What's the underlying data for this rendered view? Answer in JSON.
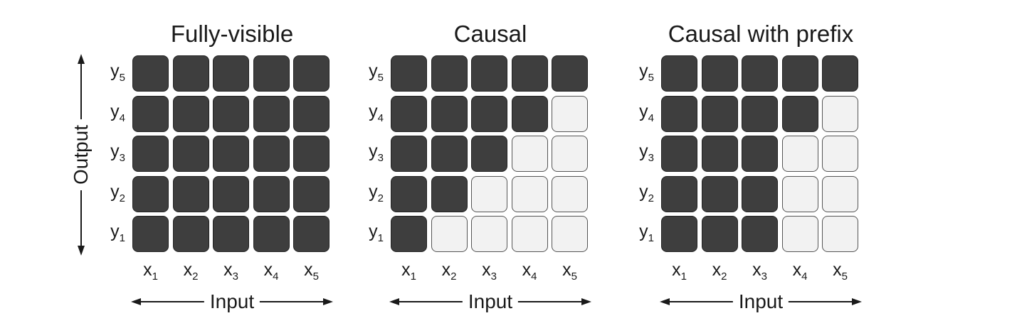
{
  "diagram": {
    "output_axis_label": "Output",
    "input_axis_label": "Input",
    "row_labels": [
      {
        "letter": "y",
        "sub": "5"
      },
      {
        "letter": "y",
        "sub": "4"
      },
      {
        "letter": "y",
        "sub": "3"
      },
      {
        "letter": "y",
        "sub": "2"
      },
      {
        "letter": "y",
        "sub": "1"
      }
    ],
    "col_labels": [
      {
        "letter": "x",
        "sub": "1"
      },
      {
        "letter": "x",
        "sub": "2"
      },
      {
        "letter": "x",
        "sub": "3"
      },
      {
        "letter": "x",
        "sub": "4"
      },
      {
        "letter": "x",
        "sub": "5"
      }
    ],
    "colors": {
      "attended": "#3e3e3e",
      "masked": "#f2f2f2",
      "border": "#222222"
    },
    "panels": [
      {
        "title": "Fully-visible",
        "mask": [
          [
            1,
            1,
            1,
            1,
            1
          ],
          [
            1,
            1,
            1,
            1,
            1
          ],
          [
            1,
            1,
            1,
            1,
            1
          ],
          [
            1,
            1,
            1,
            1,
            1
          ],
          [
            1,
            1,
            1,
            1,
            1
          ]
        ]
      },
      {
        "title": "Causal",
        "mask": [
          [
            1,
            1,
            1,
            1,
            1
          ],
          [
            1,
            1,
            1,
            1,
            0
          ],
          [
            1,
            1,
            1,
            0,
            0
          ],
          [
            1,
            1,
            0,
            0,
            0
          ],
          [
            1,
            0,
            0,
            0,
            0
          ]
        ]
      },
      {
        "title": "Causal with prefix",
        "mask": [
          [
            1,
            1,
            1,
            1,
            1
          ],
          [
            1,
            1,
            1,
            1,
            0
          ],
          [
            1,
            1,
            1,
            0,
            0
          ],
          [
            1,
            1,
            1,
            0,
            0
          ],
          [
            1,
            1,
            1,
            0,
            0
          ]
        ]
      }
    ]
  }
}
